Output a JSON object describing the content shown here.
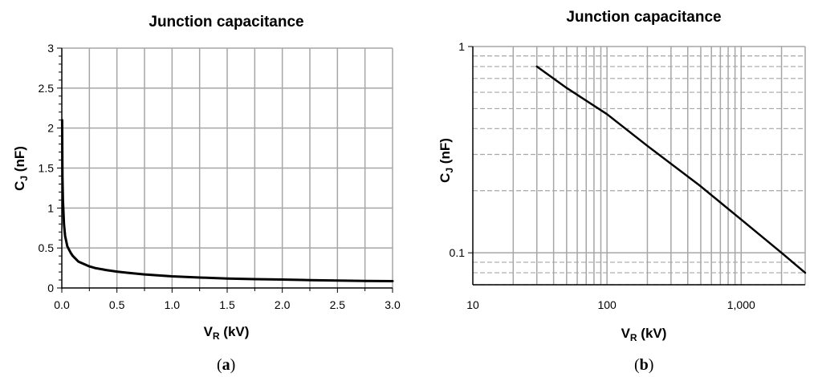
{
  "chart_data": [
    {
      "type": "line",
      "panel_label": "a",
      "title": "Junction capacitance",
      "xlabel": "V",
      "xlabel_sub": "R",
      "xlabel_unit": " (kV)",
      "ylabel": "C",
      "ylabel_sub": "J",
      "ylabel_unit": " (nF)",
      "xlim": [
        0,
        3
      ],
      "ylim": [
        0,
        3
      ],
      "xscale": "linear",
      "yscale": "linear",
      "grid": true,
      "xticks": [
        0.0,
        0.5,
        1.0,
        1.5,
        2.0,
        2.5,
        3.0
      ],
      "xtick_labels": [
        "0.0",
        "0.5",
        "1.0",
        "1.5",
        "2.0",
        "2.5",
        "3.0"
      ],
      "yticks": [
        0,
        0.5,
        1,
        1.5,
        2,
        2.5,
        3
      ],
      "ytick_labels": [
        "0",
        "0.5",
        "1",
        "1.5",
        "2",
        "2.5",
        "3"
      ],
      "line_color": "#000000",
      "grid_color": "#a6a6a6",
      "series": [
        {
          "x": [
            0.003,
            0.006,
            0.01,
            0.02,
            0.03,
            0.05,
            0.08,
            0.1,
            0.15,
            0.2,
            0.25,
            0.3,
            0.4,
            0.5,
            0.6,
            0.75,
            1.0,
            1.25,
            1.5,
            1.75,
            2.0,
            2.25,
            2.5,
            2.75,
            3.0
          ],
          "y": [
            2.1,
            1.4,
            1.1,
            0.8,
            0.65,
            0.52,
            0.44,
            0.4,
            0.33,
            0.3,
            0.27,
            0.25,
            0.225,
            0.205,
            0.19,
            0.17,
            0.145,
            0.13,
            0.118,
            0.11,
            0.105,
            0.098,
            0.093,
            0.088,
            0.085
          ]
        }
      ]
    },
    {
      "type": "line",
      "panel_label": "b",
      "title": "Junction capacitance",
      "xlabel": "V",
      "xlabel_sub": "R",
      "xlabel_unit": " (kV)",
      "ylabel": "C",
      "ylabel_sub": "J",
      "ylabel_unit": " (nF)",
      "xlim": [
        10,
        3000
      ],
      "ylim": [
        0.07,
        1
      ],
      "xscale": "log",
      "yscale": "log",
      "grid": true,
      "xticks": [
        10,
        100,
        1000
      ],
      "xtick_labels": [
        "10",
        "100",
        "1,000"
      ],
      "yticks": [
        0.1,
        1
      ],
      "ytick_labels": [
        "0.1",
        "1"
      ],
      "line_color": "#000000",
      "grid_color": "#a6a6a6",
      "series": [
        {
          "x": [
            30,
            50,
            100,
            200,
            500,
            1000,
            2000,
            3000
          ],
          "y": [
            0.8,
            0.63,
            0.47,
            0.33,
            0.21,
            0.145,
            0.1,
            0.08
          ]
        }
      ]
    }
  ]
}
